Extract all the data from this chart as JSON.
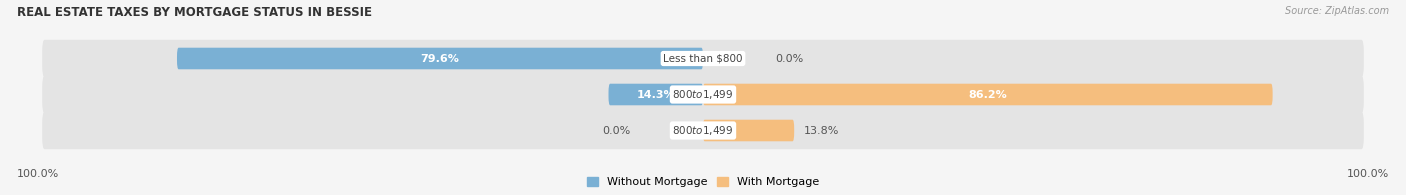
{
  "title": "REAL ESTATE TAXES BY MORTGAGE STATUS IN BESSIE",
  "source": "Source: ZipAtlas.com",
  "rows": [
    {
      "label": "Less than $800",
      "without_mortgage_pct": 79.6,
      "with_mortgage_pct": 0.0
    },
    {
      "label": "$800 to $1,499",
      "without_mortgage_pct": 14.3,
      "with_mortgage_pct": 86.2
    },
    {
      "label": "$800 to $1,499",
      "without_mortgage_pct": 0.0,
      "with_mortgage_pct": 13.8
    }
  ],
  "without_mortgage_color": "#7ab0d4",
  "with_mortgage_color": "#f5be7e",
  "row_bg_color": "#e4e4e4",
  "fig_bg_color": "#f5f5f5",
  "label_box_color": "#ffffff",
  "xlim_left": -100,
  "xlim_right": 100,
  "legend_left_label": "Without Mortgage",
  "legend_right_label": "With Mortgage",
  "bottom_left_label": "100.0%",
  "bottom_right_label": "100.0%"
}
